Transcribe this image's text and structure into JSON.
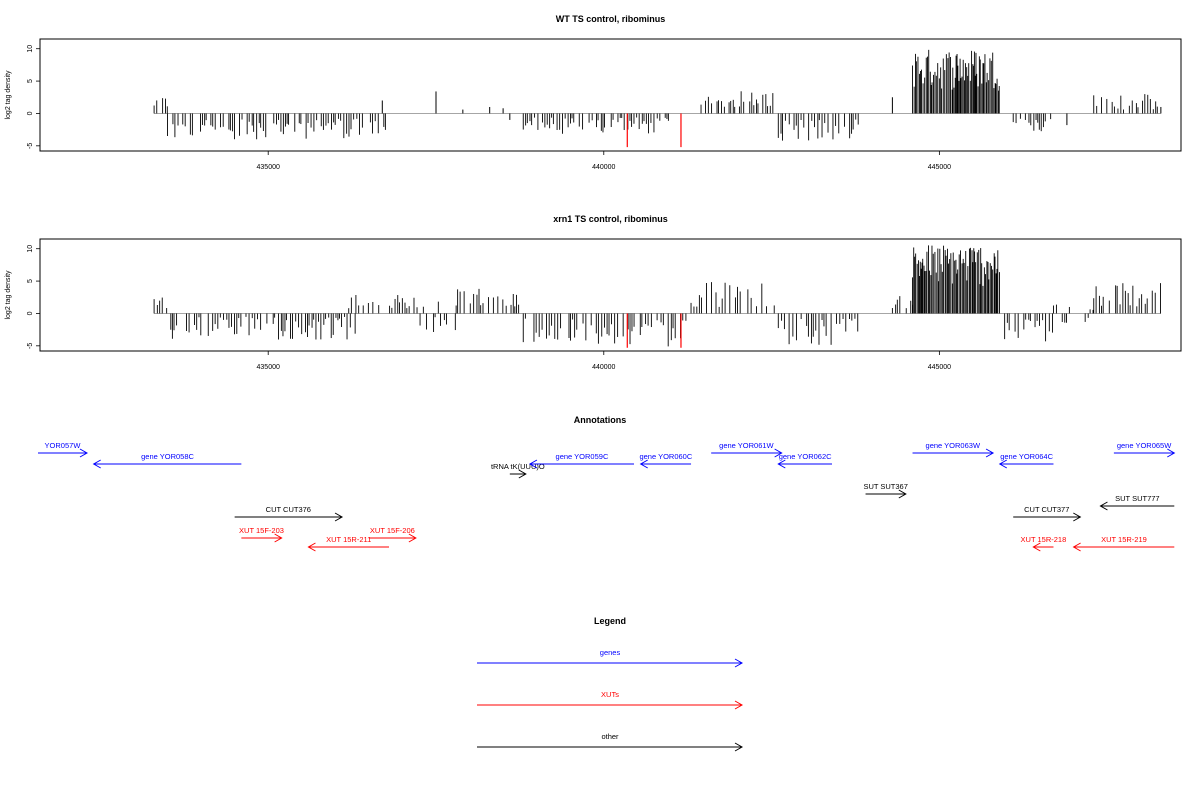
{
  "chart_data": [
    {
      "type": "bar",
      "title": "WT TS control, ribominus",
      "ylabel": "log2 tag density",
      "xlabel": "",
      "xlim": [
        431600,
        448600
      ],
      "ylim": [
        -5.8,
        11.5
      ],
      "xticks": [
        435000,
        440000,
        445000
      ],
      "xtick_labels": [
        "435000",
        "440000",
        "445000"
      ],
      "yticks": [
        -5,
        0,
        5,
        10
      ],
      "ytick_labels": [
        "-5",
        "0",
        "5",
        "10"
      ],
      "regions": [
        {
          "start": 433300,
          "end": 433500,
          "min": 0.8,
          "max": 2.8
        },
        {
          "start": 433500,
          "end": 436800,
          "min": -4.0,
          "max": -0.8
        },
        {
          "start": 438800,
          "end": 441000,
          "min": -3.2,
          "max": -0.6
        },
        {
          "start": 441400,
          "end": 442600,
          "min": 1.0,
          "max": 3.5
        },
        {
          "start": 442600,
          "end": 443800,
          "min": -4.2,
          "max": -0.8
        },
        {
          "start": 444600,
          "end": 445900,
          "min": 3.5,
          "max": 10.0
        },
        {
          "start": 446100,
          "end": 446700,
          "min": -2.8,
          "max": -0.6
        },
        {
          "start": 447300,
          "end": 448300,
          "min": 0.6,
          "max": 3.0
        }
      ],
      "sparse_bars": [
        {
          "x": 436700,
          "y": 2.0
        },
        {
          "x": 437500,
          "y": 3.4
        },
        {
          "x": 437900,
          "y": 0.6
        },
        {
          "x": 438300,
          "y": 1.0
        },
        {
          "x": 438500,
          "y": 0.8
        },
        {
          "x": 438600,
          "y": -1.0
        },
        {
          "x": 444300,
          "y": 2.5
        },
        {
          "x": 446900,
          "y": -1.8
        },
        {
          "x": 448300,
          "y": 1.0
        }
      ],
      "highlight_bars": [
        {
          "x": 440350,
          "y": -5.2
        },
        {
          "x": 441150,
          "y": -5.2
        }
      ],
      "bar_color": "#000000",
      "highlight_color": "#ff0000"
    },
    {
      "type": "bar",
      "title": "xrn1 TS control, ribominus",
      "ylabel": "log2 tag density",
      "xlabel": "",
      "xlim": [
        431600,
        448600
      ],
      "ylim": [
        -5.8,
        11.5
      ],
      "xticks": [
        435000,
        440000,
        445000
      ],
      "xtick_labels": [
        "435000",
        "440000",
        "445000"
      ],
      "yticks": [
        -5,
        0,
        5,
        10
      ],
      "ytick_labels": [
        "-5",
        "0",
        "5",
        "10"
      ],
      "regions": [
        {
          "start": 433300,
          "end": 433500,
          "min": 0.8,
          "max": 3.0
        },
        {
          "start": 433500,
          "end": 436300,
          "min": -4.2,
          "max": -0.5
        },
        {
          "start": 436200,
          "end": 437100,
          "min": 0.8,
          "max": 3.0
        },
        {
          "start": 437100,
          "end": 437800,
          "min": -2.5,
          "max": 2.5
        },
        {
          "start": 437800,
          "end": 438800,
          "min": 1.0,
          "max": 4.0
        },
        {
          "start": 438800,
          "end": 441300,
          "min": -5.2,
          "max": -0.8
        },
        {
          "start": 441300,
          "end": 442600,
          "min": 1.0,
          "max": 5.0
        },
        {
          "start": 442600,
          "end": 443800,
          "min": -5.0,
          "max": -0.8
        },
        {
          "start": 444300,
          "end": 444600,
          "min": 0.8,
          "max": 3.0
        },
        {
          "start": 444600,
          "end": 445900,
          "min": 4.0,
          "max": 10.8
        },
        {
          "start": 445900,
          "end": 446700,
          "min": -4.5,
          "max": -0.8
        },
        {
          "start": 446700,
          "end": 447300,
          "min": -1.5,
          "max": 1.5
        },
        {
          "start": 447300,
          "end": 448300,
          "min": 1.0,
          "max": 5.5
        }
      ],
      "sparse_bars": [],
      "highlight_bars": [
        {
          "x": 440350,
          "y": -5.3
        },
        {
          "x": 441150,
          "y": -5.3
        }
      ],
      "bar_color": "#000000",
      "highlight_color": "#ff0000"
    }
  ],
  "annotations": {
    "title": "Annotations",
    "xlim": [
      431600,
      448600
    ],
    "features": [
      {
        "label": "YOR057W",
        "start": 430700,
        "end": 432300,
        "strand": "+",
        "row": 0,
        "kind": "gene"
      },
      {
        "label": "gene YOR058C",
        "start": 432400,
        "end": 434600,
        "strand": "-",
        "row": 1,
        "kind": "gene"
      },
      {
        "label": "tRNA tK(UUU)O",
        "start": 438600,
        "end": 438700,
        "strand": "+",
        "row": 2,
        "kind": "other"
      },
      {
        "label": "gene YOR059C",
        "start": 438900,
        "end": 440450,
        "strand": "-",
        "row": 1,
        "kind": "gene"
      },
      {
        "label": "gene YOR060C",
        "start": 440550,
        "end": 441300,
        "strand": "-",
        "row": 1,
        "kind": "gene"
      },
      {
        "label": "gene YOR061W",
        "start": 441600,
        "end": 442650,
        "strand": "+",
        "row": 0,
        "kind": "gene"
      },
      {
        "label": "gene YOR062C",
        "start": 442600,
        "end": 443400,
        "strand": "-",
        "row": 1,
        "kind": "gene"
      },
      {
        "label": "gene YOR063W",
        "start": 444600,
        "end": 445800,
        "strand": "+",
        "row": 0,
        "kind": "gene"
      },
      {
        "label": "gene YOR064C",
        "start": 445900,
        "end": 446700,
        "strand": "-",
        "row": 1,
        "kind": "gene"
      },
      {
        "label": "gene YOR065W",
        "start": 447600,
        "end": 448500,
        "strand": "+",
        "row": 0,
        "kind": "gene"
      },
      {
        "label": "SUT SUT367",
        "start": 443900,
        "end": 444500,
        "strand": "+",
        "row": 3,
        "kind": "other"
      },
      {
        "label": "SUT SUT777",
        "start": 447400,
        "end": 448500,
        "strand": "-",
        "row": 4,
        "kind": "other"
      },
      {
        "label": "CUT CUT376",
        "start": 434500,
        "end": 436100,
        "strand": "+",
        "row": 5,
        "kind": "other"
      },
      {
        "label": "CUT CUT377",
        "start": 446100,
        "end": 447100,
        "strand": "+",
        "row": 5,
        "kind": "other"
      },
      {
        "label": "XUT 15F-203",
        "start": 434600,
        "end": 435200,
        "strand": "+",
        "row": 6,
        "kind": "xut"
      },
      {
        "label": "XUT 15F-206",
        "start": 436500,
        "end": 437200,
        "strand": "+",
        "row": 6,
        "kind": "xut"
      },
      {
        "label": "XUT 15R-211",
        "start": 435600,
        "end": 436800,
        "strand": "-",
        "row": 7,
        "kind": "xut"
      },
      {
        "label": "XUT 15R-218",
        "start": 446400,
        "end": 446700,
        "strand": "-",
        "row": 7,
        "kind": "xut"
      },
      {
        "label": "XUT 15R-219",
        "start": 447000,
        "end": 448500,
        "strand": "-",
        "row": 7,
        "kind": "xut"
      }
    ],
    "colors": {
      "gene": "#0000ff",
      "xut": "#ff0000",
      "other": "#000000"
    }
  },
  "legend": {
    "title": "Legend",
    "entries": [
      {
        "label": "genes",
        "color": "#0000ff"
      },
      {
        "label": "XUTs",
        "color": "#ff0000"
      },
      {
        "label": "other",
        "color": "#000000"
      }
    ]
  }
}
